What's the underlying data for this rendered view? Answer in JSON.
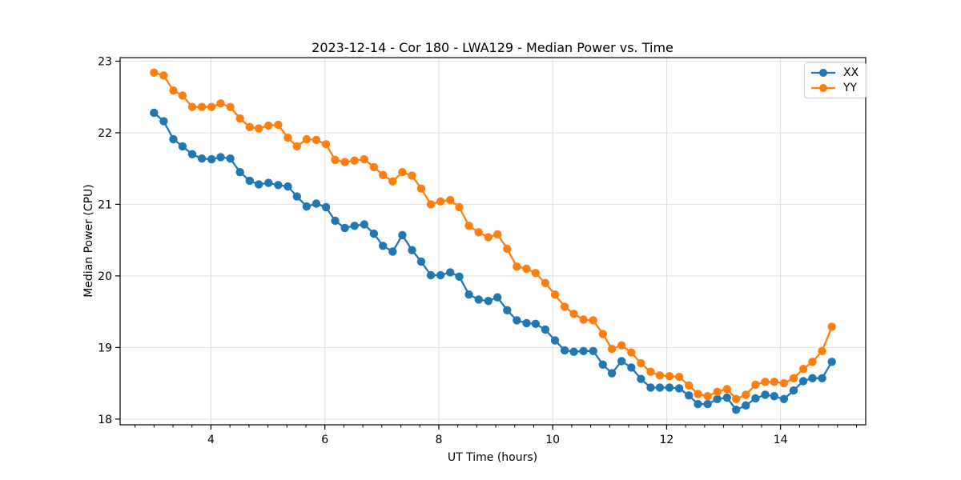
{
  "chart_data": {
    "type": "line",
    "title": "2023-12-14 - Cor 180 - LWA129 - Median Power vs. Time",
    "xlabel": "UT Time (hours)",
    "ylabel": "Median Power (CPU)",
    "xlim": [
      2.405,
      15.495
    ],
    "ylim": [
      17.92,
      23.05
    ],
    "x_major_ticks": [
      4,
      6,
      8,
      10,
      12,
      14
    ],
    "x_minor_tick_step_hours": 0.3333,
    "y_major_ticks": [
      18,
      19,
      20,
      21,
      22,
      23
    ],
    "grid": true,
    "grid_color": "#dfdfdf",
    "frame_color": "#000000",
    "legend": {
      "position": "upper right",
      "entries": [
        "XX",
        "YY"
      ]
    },
    "x": [
      3.0,
      3.17,
      3.34,
      3.5,
      3.67,
      3.84,
      4.01,
      4.17,
      4.34,
      4.51,
      4.68,
      4.84,
      5.01,
      5.18,
      5.35,
      5.51,
      5.68,
      5.85,
      6.02,
      6.18,
      6.35,
      6.52,
      6.69,
      6.86,
      7.02,
      7.19,
      7.36,
      7.53,
      7.69,
      7.86,
      8.03,
      8.2,
      8.36,
      8.53,
      8.7,
      8.87,
      9.03,
      9.2,
      9.37,
      9.54,
      9.7,
      9.87,
      10.04,
      10.21,
      10.37,
      10.54,
      10.71,
      10.88,
      11.04,
      11.21,
      11.38,
      11.55,
      11.72,
      11.88,
      12.05,
      12.22,
      12.39,
      12.55,
      12.72,
      12.89,
      13.06,
      13.22,
      13.39,
      13.56,
      13.73,
      13.89,
      14.06,
      14.23,
      14.4,
      14.56,
      14.73,
      14.9
    ],
    "series": [
      {
        "name": "XX",
        "color": "#1f77b4",
        "values": [
          22.28,
          22.16,
          21.91,
          21.81,
          21.7,
          21.64,
          21.63,
          21.66,
          21.64,
          21.45,
          21.33,
          21.28,
          21.3,
          21.27,
          21.25,
          21.11,
          20.97,
          21.01,
          20.96,
          20.77,
          20.67,
          20.7,
          20.72,
          20.59,
          20.42,
          20.34,
          20.57,
          20.36,
          20.2,
          20.01,
          20.01,
          20.05,
          19.99,
          19.74,
          19.67,
          19.65,
          19.7,
          19.52,
          19.38,
          19.34,
          19.33,
          19.25,
          19.1,
          18.96,
          18.94,
          18.95,
          18.95,
          18.76,
          18.64,
          18.81,
          18.72,
          18.56,
          18.44,
          18.44,
          18.44,
          18.43,
          18.33,
          18.21,
          18.21,
          18.28,
          18.3,
          18.13,
          18.19,
          18.29,
          18.34,
          18.32,
          18.28,
          18.4,
          18.53,
          18.57,
          18.57,
          18.8
        ]
      },
      {
        "name": "YY",
        "color": "#ff7f0e",
        "values": [
          22.84,
          22.8,
          22.59,
          22.52,
          22.36,
          22.36,
          22.36,
          22.41,
          22.36,
          22.2,
          22.08,
          22.06,
          22.1,
          22.11,
          21.93,
          21.81,
          21.91,
          21.9,
          21.84,
          21.62,
          21.59,
          21.61,
          21.63,
          21.52,
          21.41,
          21.32,
          21.45,
          21.4,
          21.22,
          21.0,
          21.04,
          21.06,
          20.96,
          20.7,
          20.61,
          20.54,
          20.58,
          20.38,
          20.13,
          20.1,
          20.04,
          19.9,
          19.74,
          19.57,
          19.47,
          19.39,
          19.38,
          19.19,
          18.98,
          19.03,
          18.93,
          18.78,
          18.66,
          18.61,
          18.6,
          18.59,
          18.47,
          18.35,
          18.32,
          18.38,
          18.42,
          18.28,
          18.34,
          18.48,
          18.52,
          18.52,
          18.5,
          18.57,
          18.7,
          18.8,
          18.95,
          19.29
        ]
      }
    ]
  }
}
